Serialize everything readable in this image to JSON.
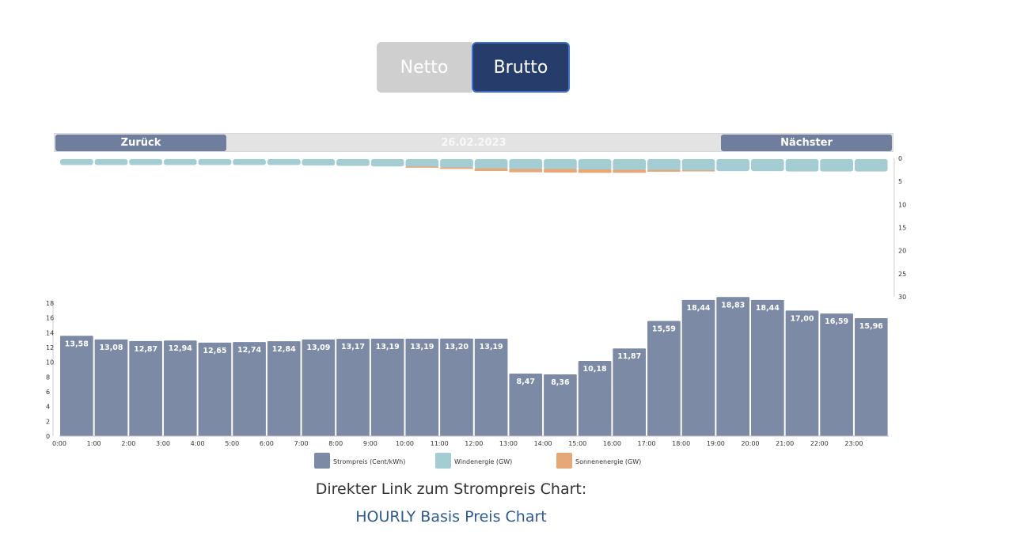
{
  "toggle": {
    "netto_label": "Netto",
    "brutto_label": "Brutto",
    "active": "Brutto"
  },
  "nav": {
    "prev_label": "Zurück",
    "date": "26.02.2023",
    "next_label": "Nächster"
  },
  "colors": {
    "price_bar": "#7c8aa6",
    "wind": "#a3ccd3",
    "solar": "#e6a878",
    "nav_button": "#6f7e9c",
    "brutto_active": "#263d6b"
  },
  "chart_data": {
    "type": "bar",
    "categories": [
      "0:00",
      "1:00",
      "2:00",
      "3:00",
      "4:00",
      "5:00",
      "6:00",
      "7:00",
      "8:00",
      "9:00",
      "10:00",
      "11:00",
      "12:00",
      "13:00",
      "14:00",
      "15:00",
      "16:00",
      "17:00",
      "18:00",
      "19:00",
      "20:00",
      "21:00",
      "22:00",
      "23:00"
    ],
    "series": [
      {
        "name": "Strompreis (Cent/kWh)",
        "type": "bar",
        "axis": "left",
        "values": [
          13.58,
          13.08,
          12.87,
          12.94,
          12.65,
          12.74,
          12.84,
          13.09,
          13.17,
          13.19,
          13.19,
          13.2,
          13.19,
          8.47,
          8.36,
          10.18,
          11.87,
          15.59,
          18.44,
          18.83,
          18.44,
          17.0,
          16.59,
          15.96
        ],
        "labels": [
          "13,58",
          "13,08",
          "12,87",
          "12,94",
          "12,65",
          "12,74",
          "12,84",
          "13,09",
          "13,17",
          "13,19",
          "13,19",
          "13,20",
          "13,19",
          "8,47",
          "8,36",
          "10,18",
          "11,87",
          "15,59",
          "18,44",
          "18,83",
          "18,44",
          "17,00",
          "16,59",
          "15,96"
        ]
      },
      {
        "name": "Windenergie (GW)",
        "type": "bar",
        "axis": "right",
        "values": [
          0.6,
          0.6,
          0.6,
          0.6,
          0.6,
          0.6,
          0.6,
          0.7,
          0.8,
          0.9,
          1.1,
          1.3,
          1.5,
          1.6,
          1.6,
          1.7,
          1.8,
          1.8,
          1.9,
          1.9,
          1.9,
          2.0,
          2.0,
          2.0
        ]
      },
      {
        "name": "Sonnenenergie (GW)",
        "type": "bar",
        "axis": "right",
        "values": [
          0,
          0,
          0,
          0,
          0,
          0,
          0,
          0,
          0,
          0,
          0.3,
          0.9,
          1.6,
          2.1,
          2.3,
          2.2,
          1.9,
          1.2,
          0.4,
          0,
          0,
          0,
          0,
          0
        ]
      }
    ],
    "y_left": {
      "ylim": [
        0,
        18
      ],
      "ticks": [
        "0",
        "2",
        "4",
        "6",
        "8",
        "10",
        "12",
        "14",
        "16",
        "18"
      ]
    },
    "y_right": {
      "ylim": [
        0,
        30
      ],
      "inverted": true,
      "ticks": [
        "0",
        "5",
        "10",
        "15",
        "20",
        "25",
        "30"
      ]
    },
    "legend_position": "bottom",
    "grid": false
  },
  "footer": {
    "caption": "Direkter Link zum Strompreis Chart:",
    "link_label": "HOURLY Basis Preis Chart"
  }
}
